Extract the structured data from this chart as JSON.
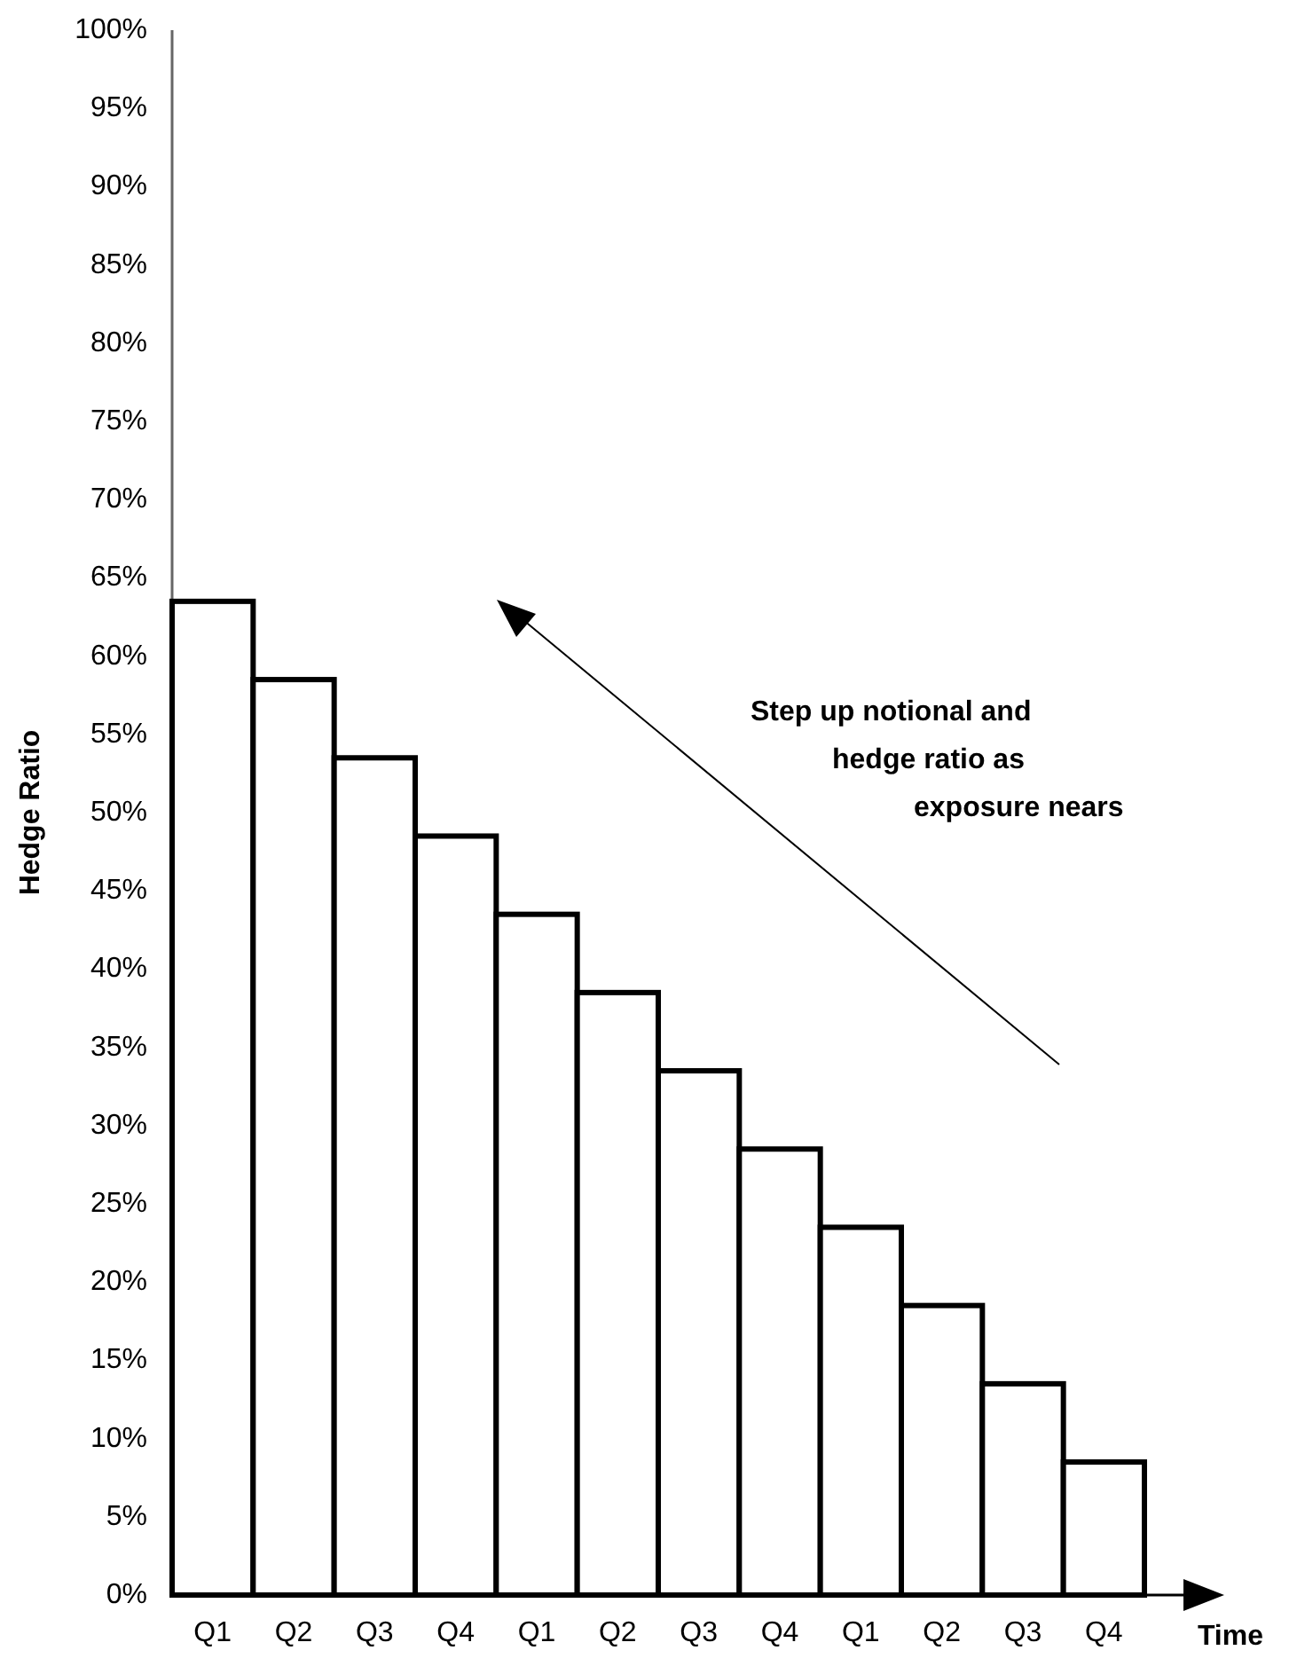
{
  "chart_data": {
    "type": "bar",
    "ylabel": "Hedge Ratio",
    "xlabel": "Time",
    "categories": [
      "Q1",
      "Q2",
      "Q3",
      "Q4",
      "Q1",
      "Q2",
      "Q3",
      "Q4",
      "Q1",
      "Q2",
      "Q3",
      "Q4"
    ],
    "values": [
      63.5,
      58.5,
      53.5,
      48.5,
      43.5,
      38.5,
      33.5,
      28.5,
      23.5,
      18.5,
      13.5,
      8.5
    ],
    "color": "#ffffff",
    "ylim": [
      0,
      100
    ],
    "yticks": [
      {
        "value": 0,
        "label": "0%"
      },
      {
        "value": 5,
        "label": "5%"
      },
      {
        "value": 10,
        "label": "10%"
      },
      {
        "value": 15,
        "label": "15%"
      },
      {
        "value": 20,
        "label": "20%"
      },
      {
        "value": 25,
        "label": "25%"
      },
      {
        "value": 30,
        "label": "30%"
      },
      {
        "value": 35,
        "label": "35%"
      },
      {
        "value": 40,
        "label": "40%"
      },
      {
        "value": 45,
        "label": "45%"
      },
      {
        "value": 50,
        "label": "50%"
      },
      {
        "value": 55,
        "label": "55%"
      },
      {
        "value": 60,
        "label": "60%"
      },
      {
        "value": 65,
        "label": "65%"
      },
      {
        "value": 70,
        "label": "70%"
      },
      {
        "value": 75,
        "label": "75%"
      },
      {
        "value": 80,
        "label": "80%"
      },
      {
        "value": 85,
        "label": "85%"
      },
      {
        "value": 90,
        "label": "90%"
      },
      {
        "value": 95,
        "label": "95%"
      },
      {
        "value": 100,
        "label": "100%"
      }
    ],
    "grid": false,
    "annotations": [
      "Step up notional and\nhedge ratio as\nexposure nears"
    ]
  }
}
